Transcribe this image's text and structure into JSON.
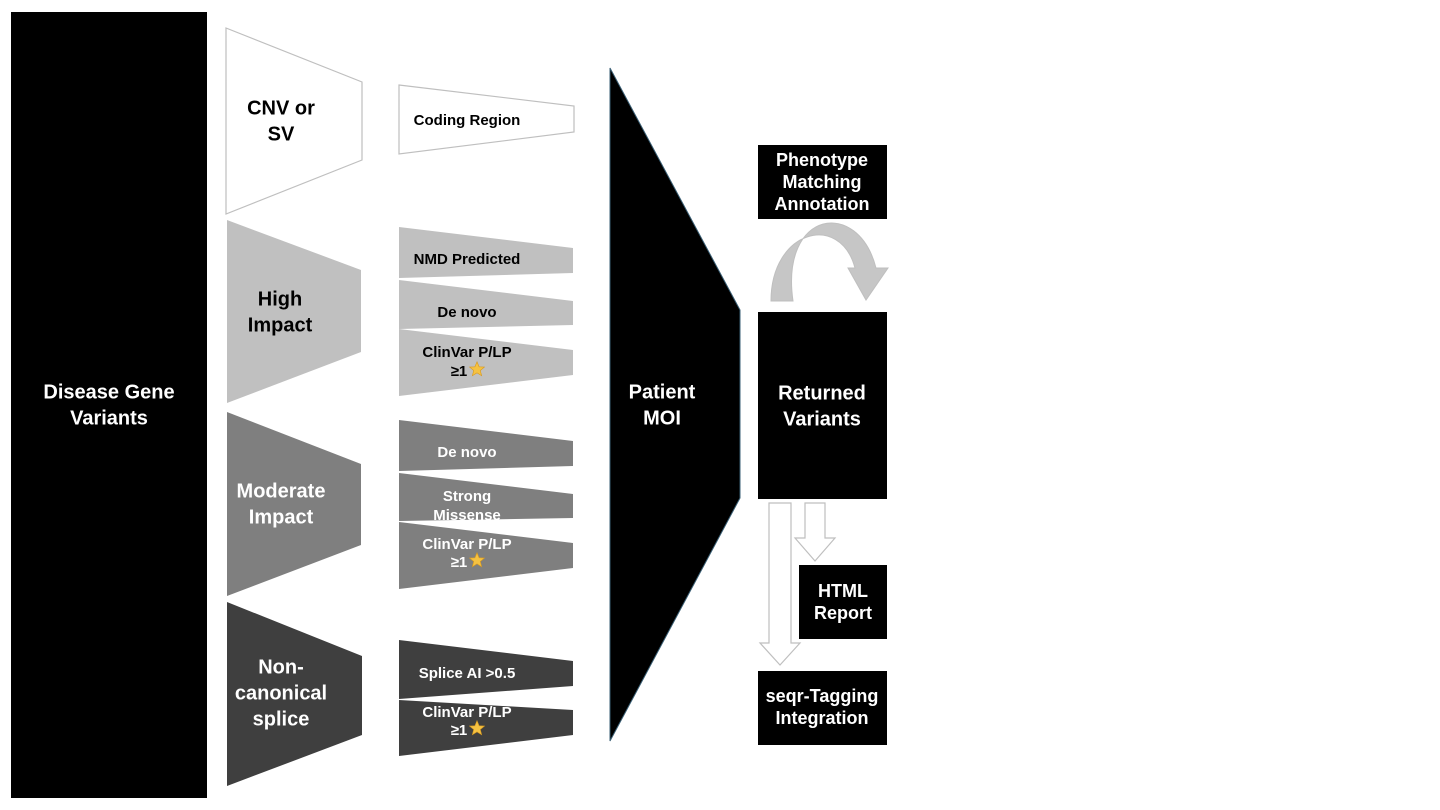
{
  "colors": {
    "black": "#000000",
    "light_gray": "#c0c0c0",
    "mid_gray": "#7f7f7f",
    "dark_gray": "#3f3f3f",
    "outline": "#bfbfbf",
    "star": "#f5c242"
  },
  "icons": {
    "star": "star-icon",
    "curved_arrow": "curved-arrow-icon",
    "down_arrow": "down-arrow-icon"
  },
  "source": {
    "line1": "Disease Gene",
    "line2": "Variants"
  },
  "categories": [
    {
      "id": "cnv",
      "line1": "CNV or",
      "line2": "SV",
      "filters": [
        {
          "lines": [
            "Coding Region"
          ]
        }
      ]
    },
    {
      "id": "high",
      "line1": "High",
      "line2": "Impact",
      "filters": [
        {
          "lines": [
            "NMD Predicted"
          ]
        },
        {
          "lines": [
            "De novo"
          ]
        },
        {
          "lines": [
            "ClinVar P/LP",
            "≥1"
          ]
        }
      ]
    },
    {
      "id": "moderate",
      "line1": "Moderate",
      "line2": "Impact",
      "filters": [
        {
          "lines": [
            "De novo"
          ]
        },
        {
          "lines": [
            "Strong",
            "Missense"
          ]
        },
        {
          "lines": [
            "ClinVar P/LP",
            "≥1"
          ]
        }
      ]
    },
    {
      "id": "splice",
      "line1": "Non-",
      "line2": "canonical",
      "line3": "splice",
      "filters": [
        {
          "lines": [
            "Splice AI >0.5"
          ]
        },
        {
          "lines": [
            "ClinVar P/LP",
            "≥1"
          ]
        }
      ]
    }
  ],
  "moi": {
    "line1": "Patient",
    "line2": "MOI"
  },
  "outputs": {
    "phenotype": {
      "line1": "Phenotype",
      "line2": "Matching",
      "line3": "Annotation"
    },
    "returned": {
      "line1": "Returned",
      "line2": "Variants"
    },
    "html_report": {
      "line1": "HTML",
      "line2": "Report"
    },
    "seqr": {
      "line1": "seqr-Tagging",
      "line2": "Integration"
    }
  }
}
